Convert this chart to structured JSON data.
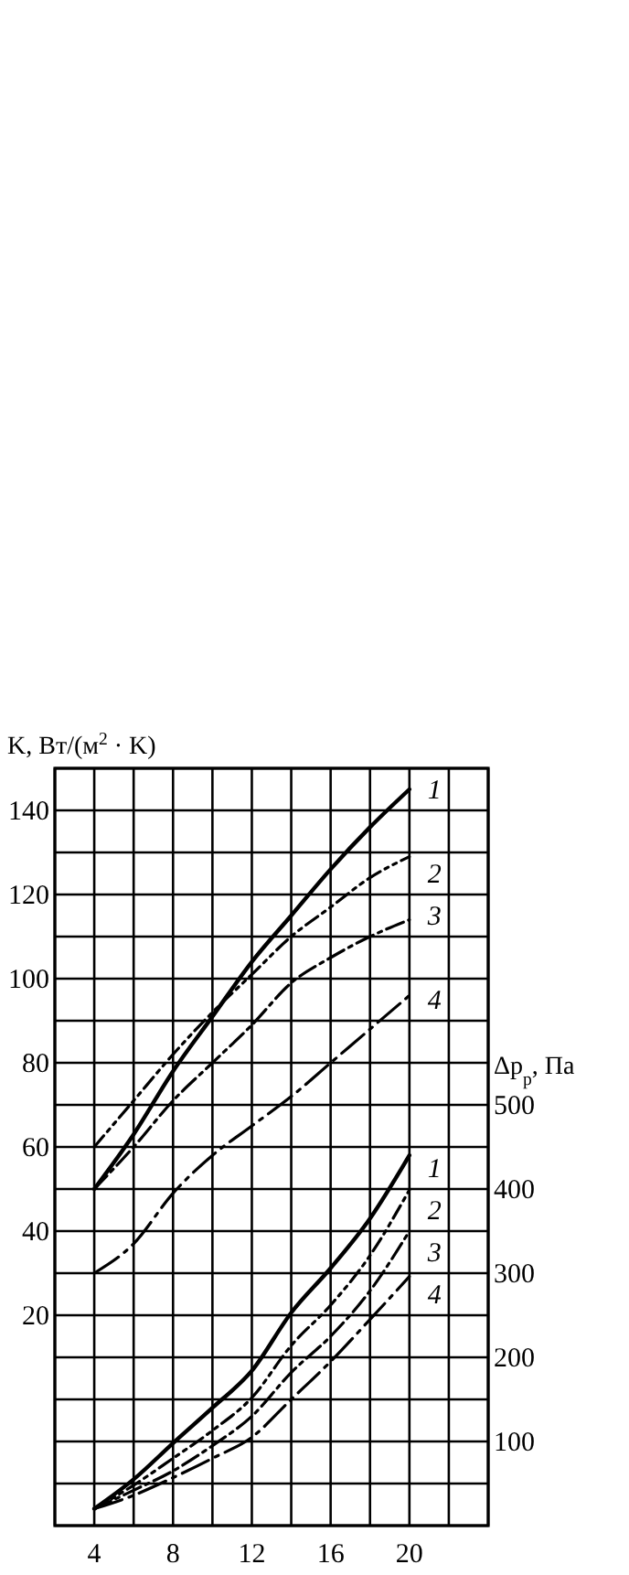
{
  "chart_data": {
    "type": "line",
    "ylabel": "K, Вт/(м$^{2}$ · K)",
    "y2label": "Δp$_{р}$, Па",
    "x": [
      4,
      6,
      8,
      10,
      12,
      14,
      16,
      18,
      20
    ],
    "xlim": [
      2,
      24
    ],
    "xticks": [
      {
        "value": 2,
        "label": null
      },
      4,
      {
        "value": 6,
        "label": null
      },
      8,
      {
        "value": 10,
        "label": null
      },
      12,
      {
        "value": 14,
        "label": null
      },
      16,
      {
        "value": 18,
        "label": null
      },
      20,
      {
        "value": 22,
        "label": null
      },
      {
        "value": 24,
        "label": null
      }
    ],
    "ylim": [
      -30,
      150
    ],
    "yticks": [
      {
        "value": -30,
        "label": null
      },
      {
        "value": -20,
        "label": null
      },
      {
        "value": -10,
        "label": null
      },
      {
        "value": 0,
        "label": null
      },
      {
        "value": 10,
        "label": null
      },
      20,
      {
        "value": 30,
        "label": null
      },
      40,
      {
        "value": 50,
        "label": null
      },
      60,
      {
        "value": 70,
        "label": null
      },
      80,
      {
        "value": 90,
        "label": null
      },
      100,
      {
        "value": 110,
        "label": null
      },
      120,
      {
        "value": 130,
        "label": null
      },
      140,
      {
        "value": 150,
        "label": null
      }
    ],
    "y2lim": [
      0,
      900
    ],
    "y2ticks": [
      100,
      200,
      300,
      400,
      500
    ],
    "grid": true,
    "series": [
      {
        "name": "1",
        "color": "#000000",
        "line_style": "solid",
        "values": [
          50,
          63,
          78,
          91,
          104,
          115,
          126,
          136,
          145
        ]
      },
      {
        "name": "2",
        "color": "#000000",
        "line_style": "dashdotdot",
        "values": [
          60,
          71,
          82,
          92,
          101,
          110,
          117,
          124,
          129
        ]
      },
      {
        "name": "3",
        "color": "#000000",
        "line_style": "dashdot",
        "values": [
          50,
          60,
          71,
          80,
          89,
          99,
          105,
          110,
          114
        ]
      },
      {
        "name": "4",
        "color": "#000000",
        "line_style": "longdashdot",
        "values": [
          30,
          37,
          49,
          58,
          65,
          72,
          80,
          88,
          96
        ]
      },
      {
        "name": "1",
        "color": "#000000",
        "line_style": "solid",
        "axis": "y2",
        "values": [
          20,
          55,
          98,
          140,
          184,
          253,
          306,
          365,
          440
        ]
      },
      {
        "name": "2",
        "color": "#000000",
        "line_style": "dashdotdot",
        "axis": "y2",
        "values": [
          20,
          48,
          80,
          113,
          152,
          214,
          262,
          321,
          399
        ]
      },
      {
        "name": "3",
        "color": "#000000",
        "line_style": "dashdot",
        "axis": "y2",
        "values": [
          20,
          42,
          65,
          95,
          130,
          182,
          225,
          279,
          350
        ]
      },
      {
        "name": "4",
        "color": "#000000",
        "line_style": "longdashdot",
        "axis": "y2",
        "values": [
          20,
          36,
          57,
          80,
          105,
          150,
          195,
          245,
          296
        ]
      }
    ]
  }
}
